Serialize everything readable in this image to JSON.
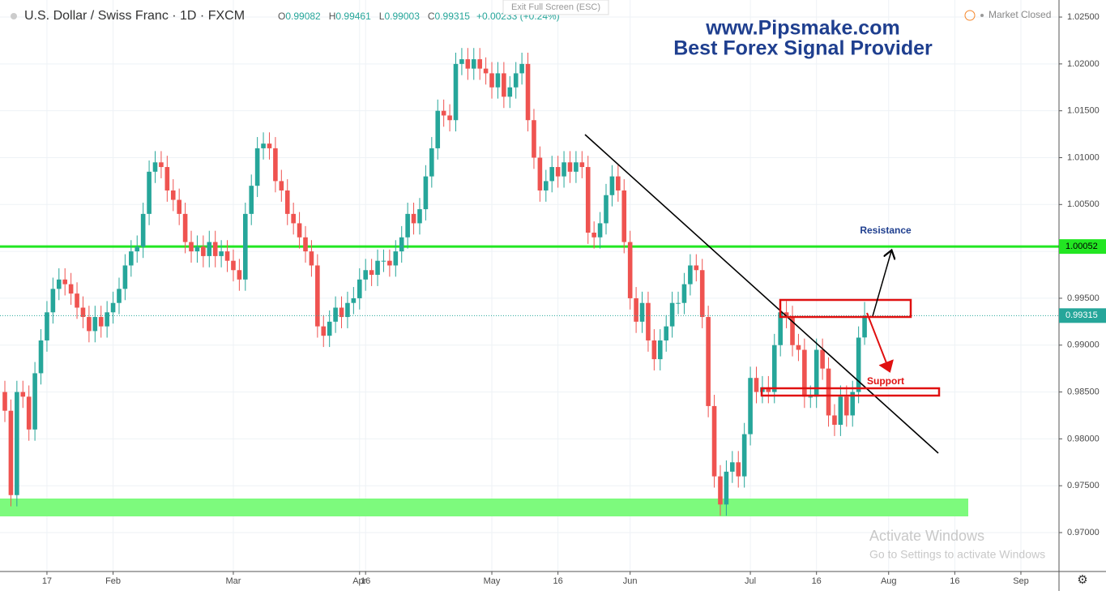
{
  "header": {
    "symbol": "U.S. Dollar / Swiss Franc · 1D · FXCM",
    "ohlc_letters": [
      "O",
      "H",
      "L",
      "C"
    ],
    "change": "+0.00233 (+0.24%)",
    "market_status": "Market Closed",
    "exit_fullscreen": "Exit Full Screen (ESC)"
  },
  "watermark": [
    "www.Pipsmake.com",
    "Best Forex Signal Provider"
  ],
  "annotations": {
    "resistance": "Resistance",
    "support": "Support"
  },
  "os_notice": [
    "Activate Windows",
    "Go to Settings to activate Windows"
  ],
  "chart_data": {
    "type": "candlestick",
    "categories": [
      null,
      null,
      null,
      null,
      null,
      null,
      null,
      "17",
      null,
      null,
      null,
      null,
      null,
      null,
      null,
      null,
      null,
      null,
      "Feb",
      null,
      null,
      null,
      null,
      null,
      null,
      null,
      null,
      null,
      null,
      null,
      null,
      null,
      null,
      null,
      null,
      null,
      null,
      null,
      "Mar",
      null,
      null,
      null,
      null,
      null,
      null,
      null,
      null,
      null,
      null,
      null,
      null,
      null,
      null,
      null,
      null,
      null,
      null,
      null,
      null,
      "Apr",
      "16",
      null,
      null,
      null,
      null,
      null,
      null,
      null,
      null,
      null,
      null,
      null,
      null,
      null,
      null,
      null,
      null,
      null,
      null,
      null,
      null,
      "May",
      null,
      null,
      null,
      null,
      null,
      null,
      null,
      null,
      null,
      null,
      "16",
      null,
      null,
      null,
      null,
      null,
      null,
      null,
      null,
      null,
      null,
      null,
      "Jun",
      null,
      null,
      null,
      null,
      null,
      null,
      null,
      null,
      null,
      null,
      null,
      null,
      null,
      null,
      null,
      null,
      null,
      null,
      null,
      "Jul",
      null,
      null,
      null,
      null,
      null,
      null,
      null,
      null,
      null,
      null,
      "16",
      null,
      null,
      null,
      null,
      null,
      null,
      null,
      null,
      null,
      null,
      null,
      "Aug",
      null,
      null,
      null,
      null,
      null,
      null,
      null,
      null,
      null,
      null,
      "16",
      null,
      null,
      null,
      null,
      null,
      null,
      null,
      null,
      null,
      null,
      "Sep",
      null,
      null,
      null,
      null,
      null,
      null
    ],
    "open": [
      0.985,
      0.983,
      0.974,
      0.985,
      0.9845,
      0.981,
      0.987,
      0.9905,
      0.9935,
      0.996,
      0.997,
      0.9965,
      0.9955,
      0.994,
      0.993,
      0.9915,
      0.993,
      0.992,
      0.9935,
      0.9945,
      0.996,
      0.9985,
      1.0,
      1.0005,
      1.004,
      1.0085,
      1.0095,
      1.009,
      1.0065,
      1.0055,
      1.004,
      1.001,
      1.0,
      1.0005,
      0.9995,
      1.001,
      0.9995,
      1.0,
      0.999,
      0.998,
      0.997,
      1.004,
      1.007,
      1.011,
      1.0115,
      1.011,
      1.0075,
      1.0065,
      1.004,
      1.003,
      1.0015,
      1.0,
      0.9985,
      0.992,
      0.991,
      0.9925,
      0.994,
      0.993,
      0.9945,
      0.995,
      0.997,
      0.998,
      0.9975,
      0.999,
      0.999,
      0.9985,
      1.0,
      1.0015,
      1.004,
      1.003,
      1.0045,
      1.008,
      1.011,
      1.015,
      1.0145,
      1.014,
      1.02,
      1.0205,
      1.0195,
      1.0205,
      1.0195,
      1.019,
      1.0175,
      1.019,
      1.0165,
      1.0175,
      1.019,
      1.02,
      1.014,
      1.01,
      1.0065,
      1.0075,
      1.009,
      1.008,
      1.0095,
      1.0085,
      1.0095,
      1.009,
      1.002,
      1.0015,
      1.003,
      1.006,
      1.008,
      1.0065,
      1.001,
      0.995,
      0.9925,
      0.9945,
      0.9905,
      0.9885,
      0.9905,
      0.992,
      0.9945,
      0.9945,
      0.9965,
      0.9985,
      0.998,
      0.993,
      0.9835,
      0.976,
      0.973,
      0.9765,
      0.9775,
      0.976,
      0.9805,
      0.9865,
      0.985,
      0.9855,
      0.985,
      0.99,
      0.9935,
      0.993,
      0.99,
      0.9895,
      0.9845,
      0.9845,
      0.9895,
      0.9875,
      0.9825,
      0.9815,
      0.9845,
      0.9825,
      0.985,
      0.99082,
      null,
      null,
      null,
      null,
      null,
      null,
      null,
      null,
      null,
      null,
      null,
      null,
      null,
      null,
      null,
      null,
      null,
      null,
      null,
      null,
      null,
      null,
      null,
      null,
      null,
      null,
      null,
      null,
      null,
      null,
      null,
      null
    ],
    "high": [
      0.9862,
      0.9842,
      0.9862,
      0.9862,
      0.9857,
      0.9882,
      0.9917,
      0.9947,
      0.9972,
      0.9982,
      0.9982,
      0.9977,
      0.9967,
      0.9952,
      0.9942,
      0.9942,
      0.9942,
      0.9947,
      0.9957,
      0.9972,
      0.9997,
      1.0012,
      1.0017,
      1.0052,
      1.0097,
      1.0107,
      1.0107,
      1.0102,
      1.0077,
      1.0067,
      1.0052,
      1.0022,
      1.0017,
      1.0017,
      1.0022,
      1.0022,
      1.0012,
      1.0012,
      1.0002,
      0.9992,
      1.0052,
      1.0082,
      1.0122,
      1.0127,
      1.0127,
      1.0122,
      1.0087,
      1.0077,
      1.0052,
      1.0042,
      1.0027,
      1.0012,
      0.9997,
      0.9932,
      0.9937,
      0.9952,
      0.9952,
      0.9957,
      0.9962,
      0.9982,
      0.9992,
      0.9992,
      1.0002,
      1.0002,
      1.0002,
      1.0012,
      1.0027,
      1.0052,
      1.0052,
      1.0057,
      1.0092,
      1.0122,
      1.0162,
      1.0162,
      1.0157,
      1.0212,
      1.0217,
      1.0217,
      1.0217,
      1.0217,
      1.0207,
      1.0202,
      1.0202,
      1.0202,
      1.0187,
      1.0202,
      1.0212,
      1.0212,
      1.0152,
      1.0112,
      1.0087,
      1.0102,
      1.0102,
      1.0107,
      1.0107,
      1.0107,
      1.0107,
      1.0102,
      1.0032,
      1.0042,
      1.0072,
      1.0092,
      1.0092,
      1.0077,
      1.0022,
      0.9962,
      0.9957,
      0.9957,
      0.9917,
      0.9917,
      0.9932,
      0.9957,
      0.9957,
      0.9977,
      0.9997,
      0.9997,
      0.9992,
      0.9942,
      0.9847,
      0.9772,
      0.9777,
      0.9787,
      0.9787,
      0.9817,
      0.9877,
      0.9877,
      0.9867,
      0.9867,
      0.9912,
      0.9947,
      0.9947,
      0.9942,
      0.9912,
      0.9907,
      0.9857,
      0.9907,
      0.9907,
      0.9887,
      0.9837,
      0.9857,
      0.9857,
      0.9862,
      0.992,
      0.99461,
      null,
      null,
      null,
      null,
      null,
      null,
      null,
      null,
      null,
      null,
      null,
      null,
      null,
      null,
      null,
      null,
      null,
      null,
      null,
      null,
      null,
      null,
      null,
      null,
      null,
      null,
      null,
      null,
      null,
      null,
      null,
      null
    ],
    "low": [
      0.9818,
      0.9728,
      0.9728,
      0.9833,
      0.9798,
      0.9798,
      0.9858,
      0.9893,
      0.9923,
      0.9948,
      0.9953,
      0.9943,
      0.9928,
      0.9918,
      0.9903,
      0.9903,
      0.9908,
      0.9908,
      0.9923,
      0.9933,
      0.9948,
      0.9973,
      0.9988,
      0.9993,
      1.0028,
      1.0073,
      1.0078,
      1.0053,
      1.0043,
      1.0028,
      0.9998,
      0.9988,
      0.9988,
      0.9983,
      0.9983,
      0.9983,
      0.9983,
      0.9978,
      0.9968,
      0.9958,
      0.9958,
      1.0028,
      1.0058,
      1.0098,
      1.0098,
      1.0063,
      1.0053,
      1.0028,
      1.0018,
      1.0003,
      0.9988,
      0.9973,
      0.9908,
      0.9898,
      0.9898,
      0.9913,
      0.9918,
      0.9918,
      0.9933,
      0.9938,
      0.9958,
      0.9963,
      0.9963,
      0.9978,
      0.9973,
      0.9973,
      0.9988,
      1.0003,
      1.0018,
      1.0018,
      1.0033,
      1.0068,
      1.0098,
      1.0133,
      1.0128,
      1.0128,
      1.0188,
      1.0183,
      1.0183,
      1.0183,
      1.0178,
      1.0163,
      1.0163,
      1.0153,
      1.0153,
      1.0163,
      1.0178,
      1.0128,
      1.0088,
      1.0053,
      1.0053,
      1.0063,
      1.0068,
      1.0068,
      1.0073,
      1.0073,
      1.0078,
      1.0008,
      1.0003,
      1.0003,
      1.0018,
      1.0048,
      1.0053,
      0.9998,
      0.9938,
      0.9913,
      0.9913,
      0.9893,
      0.9873,
      0.9873,
      0.9893,
      0.9908,
      0.9933,
      0.9933,
      0.9953,
      0.9968,
      0.9918,
      0.9823,
      0.9748,
      0.9718,
      0.9718,
      0.9753,
      0.9748,
      0.9748,
      0.9793,
      0.9838,
      0.9838,
      0.9838,
      0.9838,
      0.9888,
      0.9918,
      0.9888,
      0.9883,
      0.9833,
      0.9833,
      0.9833,
      0.9863,
      0.9813,
      0.9803,
      0.9803,
      0.9813,
      0.9813,
      0.9838,
      0.99003,
      null,
      null,
      null,
      null,
      null,
      null,
      null,
      null,
      null,
      null,
      null,
      null,
      null,
      null,
      null,
      null,
      null,
      null,
      null,
      null,
      null,
      null,
      null,
      null,
      null,
      null,
      null,
      null,
      null,
      null,
      null,
      null
    ],
    "close": [
      0.983,
      0.974,
      0.985,
      0.9845,
      0.981,
      0.987,
      0.9905,
      0.9935,
      0.996,
      0.997,
      0.9965,
      0.9955,
      0.994,
      0.993,
      0.9915,
      0.993,
      0.992,
      0.9935,
      0.9945,
      0.996,
      0.9985,
      1.0,
      1.0005,
      1.004,
      1.0085,
      1.0095,
      1.009,
      1.0065,
      1.0055,
      1.004,
      1.001,
      1.0,
      1.0005,
      0.9995,
      1.001,
      0.9995,
      1.0,
      0.999,
      0.998,
      0.997,
      1.004,
      1.007,
      1.011,
      1.0115,
      1.011,
      1.0075,
      1.0065,
      1.004,
      1.003,
      1.0015,
      1.0,
      0.9985,
      0.992,
      0.991,
      0.9925,
      0.994,
      0.993,
      0.9945,
      0.995,
      0.997,
      0.998,
      0.9975,
      0.999,
      0.999,
      0.9985,
      1.0,
      1.0015,
      1.004,
      1.003,
      1.0045,
      1.008,
      1.011,
      1.015,
      1.0145,
      1.014,
      1.02,
      1.0205,
      1.0195,
      1.0205,
      1.0195,
      1.019,
      1.0175,
      1.019,
      1.0165,
      1.0175,
      1.019,
      1.02,
      1.014,
      1.01,
      1.0065,
      1.0075,
      1.009,
      1.008,
      1.0095,
      1.0085,
      1.0095,
      1.009,
      1.002,
      1.0015,
      1.003,
      1.006,
      1.008,
      1.0065,
      1.001,
      0.995,
      0.9925,
      0.9945,
      0.9905,
      0.9885,
      0.9905,
      0.992,
      0.9945,
      0.9945,
      0.9965,
      0.9985,
      0.998,
      0.993,
      0.9835,
      0.976,
      0.973,
      0.9765,
      0.9775,
      0.976,
      0.9805,
      0.9865,
      0.985,
      0.9855,
      0.985,
      0.99,
      0.9935,
      0.993,
      0.99,
      0.9895,
      0.9845,
      0.9845,
      0.9895,
      0.9875,
      0.9825,
      0.9815,
      0.9845,
      0.9825,
      0.985,
      0.9908,
      0.99315,
      null,
      null,
      null,
      null,
      null,
      null,
      null,
      null,
      null,
      null,
      null,
      null,
      null,
      null,
      null,
      null,
      null,
      null,
      null,
      null,
      null,
      null,
      null,
      null,
      null,
      null,
      null,
      null,
      null,
      null,
      null,
      null
    ],
    "up_color": "#26a69a",
    "down_color": "#ef5350",
    "ylim": [
      0.96585,
      1.02682
    ],
    "yticks": [
      {
        "value": 0.97,
        "label": "0.97000"
      },
      {
        "value": 0.975,
        "label": "0.97500"
      },
      {
        "value": 0.98,
        "label": "0.98000"
      },
      {
        "value": 0.985,
        "label": "0.98500"
      },
      {
        "value": 0.99,
        "label": "0.99000"
      },
      {
        "value": 0.995,
        "label": "0.99500"
      },
      {
        "value": 1.0,
        "label": "1.00000"
      },
      {
        "value": 1.005,
        "label": "1.00500"
      },
      {
        "value": 1.01,
        "label": "1.01000"
      },
      {
        "value": 1.015,
        "label": "1.01500"
      },
      {
        "value": 1.02,
        "label": "1.02000"
      },
      {
        "value": 1.025,
        "label": "1.02500"
      }
    ],
    "grid": true,
    "level": 1.00052,
    "level_color": "#22e622"
  }
}
